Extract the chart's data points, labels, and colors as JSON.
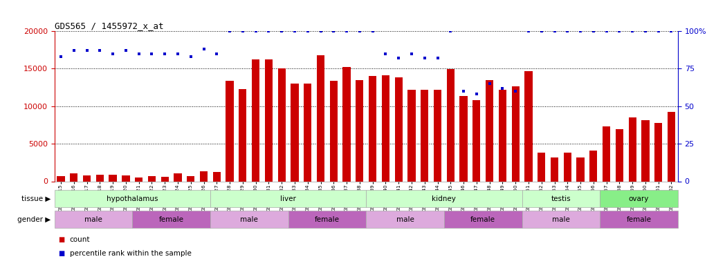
{
  "title": "GDS565 / 1455972_x_at",
  "samples": [
    "GSM19215",
    "GSM19216",
    "GSM19217",
    "GSM19218",
    "GSM19219",
    "GSM19220",
    "GSM19221",
    "GSM19222",
    "GSM19223",
    "GSM19224",
    "GSM19225",
    "GSM19226",
    "GSM19227",
    "GSM19228",
    "GSM19229",
    "GSM19230",
    "GSM19231",
    "GSM19232",
    "GSM19233",
    "GSM19234",
    "GSM19235",
    "GSM19236",
    "GSM19237",
    "GSM19238",
    "GSM19239",
    "GSM19240",
    "GSM19241",
    "GSM19242",
    "GSM19243",
    "GSM19244",
    "GSM19245",
    "GSM19246",
    "GSM19247",
    "GSM19248",
    "GSM19249",
    "GSM19250",
    "GSM19251",
    "GSM19252",
    "GSM19253",
    "GSM19254",
    "GSM19255",
    "GSM19256",
    "GSM19257",
    "GSM19258",
    "GSM19259",
    "GSM19260",
    "GSM19261",
    "GSM19262"
  ],
  "counts": [
    650,
    1050,
    800,
    900,
    850,
    750,
    500,
    650,
    600,
    1100,
    700,
    1300,
    1200,
    13400,
    12300,
    16200,
    16200,
    15000,
    13000,
    13000,
    16800,
    13400,
    15200,
    13500,
    14000,
    14100,
    13800,
    12200,
    12200,
    12200,
    14900,
    11400,
    10800,
    13500,
    12200,
    12600,
    14700,
    3800,
    3200,
    3800,
    3200,
    4100,
    7300,
    6900,
    8500,
    8100,
    7800,
    9200
  ],
  "percentile": [
    83,
    87,
    87,
    87,
    85,
    87,
    85,
    85,
    85,
    85,
    83,
    88,
    85,
    100,
    100,
    100,
    100,
    100,
    100,
    100,
    100,
    100,
    100,
    100,
    100,
    85,
    82,
    85,
    82,
    82,
    100,
    60,
    58,
    65,
    62,
    60,
    100,
    100,
    100,
    100,
    100,
    100,
    100,
    100,
    100,
    100,
    100,
    100
  ],
  "bar_color": "#cc0000",
  "dot_color": "#0000cc",
  "tissue_groups": [
    {
      "label": "hypothalamus",
      "start": 0,
      "end": 12,
      "color": "#ccffcc"
    },
    {
      "label": "liver",
      "start": 12,
      "end": 24,
      "color": "#ccffcc"
    },
    {
      "label": "kidney",
      "start": 24,
      "end": 36,
      "color": "#ccffcc"
    },
    {
      "label": "testis",
      "start": 36,
      "end": 42,
      "color": "#ccffcc"
    },
    {
      "label": "ovary",
      "start": 42,
      "end": 48,
      "color": "#88ee88"
    }
  ],
  "gender_groups": [
    {
      "label": "male",
      "start": 0,
      "end": 6,
      "color": "#ddaadd"
    },
    {
      "label": "female",
      "start": 6,
      "end": 12,
      "color": "#bb66bb"
    },
    {
      "label": "male",
      "start": 12,
      "end": 18,
      "color": "#ddaadd"
    },
    {
      "label": "female",
      "start": 18,
      "end": 24,
      "color": "#bb66bb"
    },
    {
      "label": "male",
      "start": 24,
      "end": 30,
      "color": "#ddaadd"
    },
    {
      "label": "female",
      "start": 30,
      "end": 36,
      "color": "#bb66bb"
    },
    {
      "label": "male",
      "start": 36,
      "end": 42,
      "color": "#ddaadd"
    },
    {
      "label": "female",
      "start": 42,
      "end": 48,
      "color": "#bb66bb"
    }
  ],
  "ylim_left": [
    0,
    20000
  ],
  "ylim_right": [
    0,
    100
  ],
  "yticks_left": [
    0,
    5000,
    10000,
    15000,
    20000
  ],
  "yticks_right": [
    0,
    25,
    50,
    75,
    100
  ],
  "legend_count_label": "count",
  "legend_pct_label": "percentile rank within the sample",
  "tissue_label": "tissue",
  "gender_label": "gender",
  "bg_color": "#ffffff"
}
